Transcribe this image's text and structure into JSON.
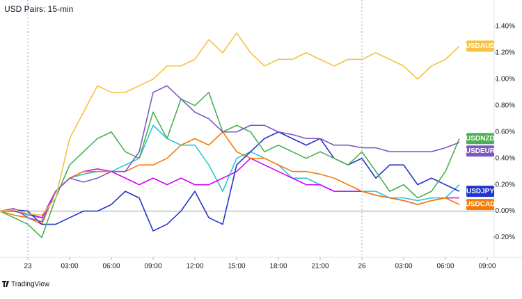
{
  "chart_data": {
    "type": "line",
    "title": "USD Pairs: 15-min",
    "footer": "TradingView",
    "x": [
      -2,
      -1,
      0,
      1,
      2,
      3,
      4,
      5,
      6,
      7,
      8,
      9,
      10,
      11,
      12,
      13,
      14,
      15,
      16,
      17,
      18,
      19,
      20,
      21,
      22,
      23,
      24,
      25,
      26,
      27,
      28,
      29,
      30,
      31
    ],
    "xlim": [
      -2,
      33.5
    ],
    "xticks": [
      {
        "value": 0,
        "label": "23"
      },
      {
        "value": 3,
        "label": "03:00"
      },
      {
        "value": 6,
        "label": "06:00"
      },
      {
        "value": 9,
        "label": "09:00"
      },
      {
        "value": 12,
        "label": "12:00"
      },
      {
        "value": 15,
        "label": "15:00"
      },
      {
        "value": 18,
        "label": "18:00"
      },
      {
        "value": 21,
        "label": "21:00"
      },
      {
        "value": 24,
        "label": "26"
      },
      {
        "value": 27,
        "label": "03:00"
      },
      {
        "value": 30,
        "label": "06:00"
      },
      {
        "value": 33,
        "label": "09:00"
      }
    ],
    "day_separators": [
      0,
      24
    ],
    "ylim": [
      -0.35,
      1.6
    ],
    "yticks": [
      {
        "value": -0.2,
        "label": "-0.20%"
      },
      {
        "value": 0,
        "label": "0.00%"
      },
      {
        "value": 0.2,
        "label": "0.20%"
      },
      {
        "value": 0.4,
        "label": "0.40%"
      },
      {
        "value": 0.6,
        "label": "0.60%"
      },
      {
        "value": 0.8,
        "label": "0.80%"
      },
      {
        "value": 1.0,
        "label": "1.00%"
      },
      {
        "value": 1.2,
        "label": "1.20%"
      },
      {
        "value": 1.4,
        "label": "1.40%"
      }
    ],
    "series": [
      {
        "color": "#26c6da",
        "values": [
          0,
          0,
          -0.03,
          -0.05,
          0.15,
          0.25,
          0.28,
          0.3,
          0.3,
          0.35,
          0.4,
          0.65,
          0.55,
          0.5,
          0.5,
          0.35,
          0.15,
          0.4,
          0.45,
          0.4,
          0.35,
          0.25,
          0.25,
          0.2,
          0.15,
          0.15,
          0.15,
          0.15,
          0.1,
          0.1,
          0.08,
          0.1,
          0.1,
          0.2
        ]
      },
      {
        "color": "#d500f9",
        "values": [
          0,
          0,
          -0.02,
          -0.05,
          0.15,
          0.25,
          0.3,
          0.32,
          0.3,
          0.25,
          0.2,
          0.25,
          0.2,
          0.25,
          0.2,
          0.2,
          0.25,
          0.3,
          0.4,
          0.35,
          0.3,
          0.25,
          0.2,
          0.2,
          0.15,
          0.15,
          0.15,
          0.12,
          0.1,
          0.08,
          0.05,
          0.08,
          0.1,
          0.1
        ]
      },
      {
        "name": "USDCAD",
        "color": "#f57c00",
        "values": [
          0,
          -0.03,
          -0.05,
          -0.1,
          0.15,
          0.25,
          0.3,
          0.3,
          0.3,
          0.3,
          0.35,
          0.35,
          0.4,
          0.5,
          0.55,
          0.5,
          0.6,
          0.45,
          0.4,
          0.4,
          0.35,
          0.3,
          0.3,
          0.28,
          0.25,
          0.2,
          0.15,
          0.12,
          0.1,
          0.08,
          0.05,
          0.08,
          0.1,
          0.05
        ]
      },
      {
        "name": "USDJPY",
        "color": "#2233cc",
        "values": [
          0,
          0.01,
          0,
          -0.1,
          -0.1,
          -0.05,
          0,
          0,
          0.05,
          0.15,
          0.1,
          -0.15,
          -0.1,
          0,
          0.15,
          -0.05,
          -0.1,
          0.35,
          0.45,
          0.55,
          0.6,
          0.55,
          0.5,
          0.55,
          0.4,
          0.35,
          0.4,
          0.25,
          0.35,
          0.35,
          0.2,
          0.25,
          0.2,
          0.15
        ]
      },
      {
        "name": "USDNZD",
        "color": "#4caf50",
        "values": [
          0,
          -0.05,
          -0.1,
          -0.2,
          0.1,
          0.35,
          0.45,
          0.55,
          0.6,
          0.45,
          0.4,
          0.75,
          0.55,
          0.85,
          0.8,
          0.9,
          0.6,
          0.65,
          0.6,
          0.45,
          0.5,
          0.45,
          0.4,
          0.45,
          0.4,
          0.35,
          0.45,
          0.3,
          0.15,
          0.2,
          0.1,
          0.15,
          0.3,
          0.55
        ]
      },
      {
        "name": "USDEUR",
        "color": "#7e57c2",
        "values": [
          0,
          0.02,
          -0.05,
          -0.08,
          0.15,
          0.25,
          0.22,
          0.25,
          0.3,
          0.3,
          0.45,
          0.9,
          0.95,
          0.85,
          0.75,
          0.7,
          0.6,
          0.6,
          0.65,
          0.65,
          0.6,
          0.58,
          0.55,
          0.55,
          0.5,
          0.5,
          0.48,
          0.48,
          0.45,
          0.45,
          0.45,
          0.45,
          0.48,
          0.52
        ]
      },
      {
        "name": "USDAUD",
        "color": "#f5c242",
        "values": [
          0,
          0.01,
          -0.02,
          -0.03,
          0.1,
          0.55,
          0.75,
          0.95,
          0.9,
          0.9,
          0.95,
          1.0,
          1.1,
          1.1,
          1.15,
          1.3,
          1.2,
          1.35,
          1.2,
          1.1,
          1.15,
          1.15,
          1.2,
          1.15,
          1.1,
          1.15,
          1.15,
          1.2,
          1.15,
          1.1,
          1.0,
          1.1,
          1.15,
          1.25
        ]
      }
    ]
  }
}
